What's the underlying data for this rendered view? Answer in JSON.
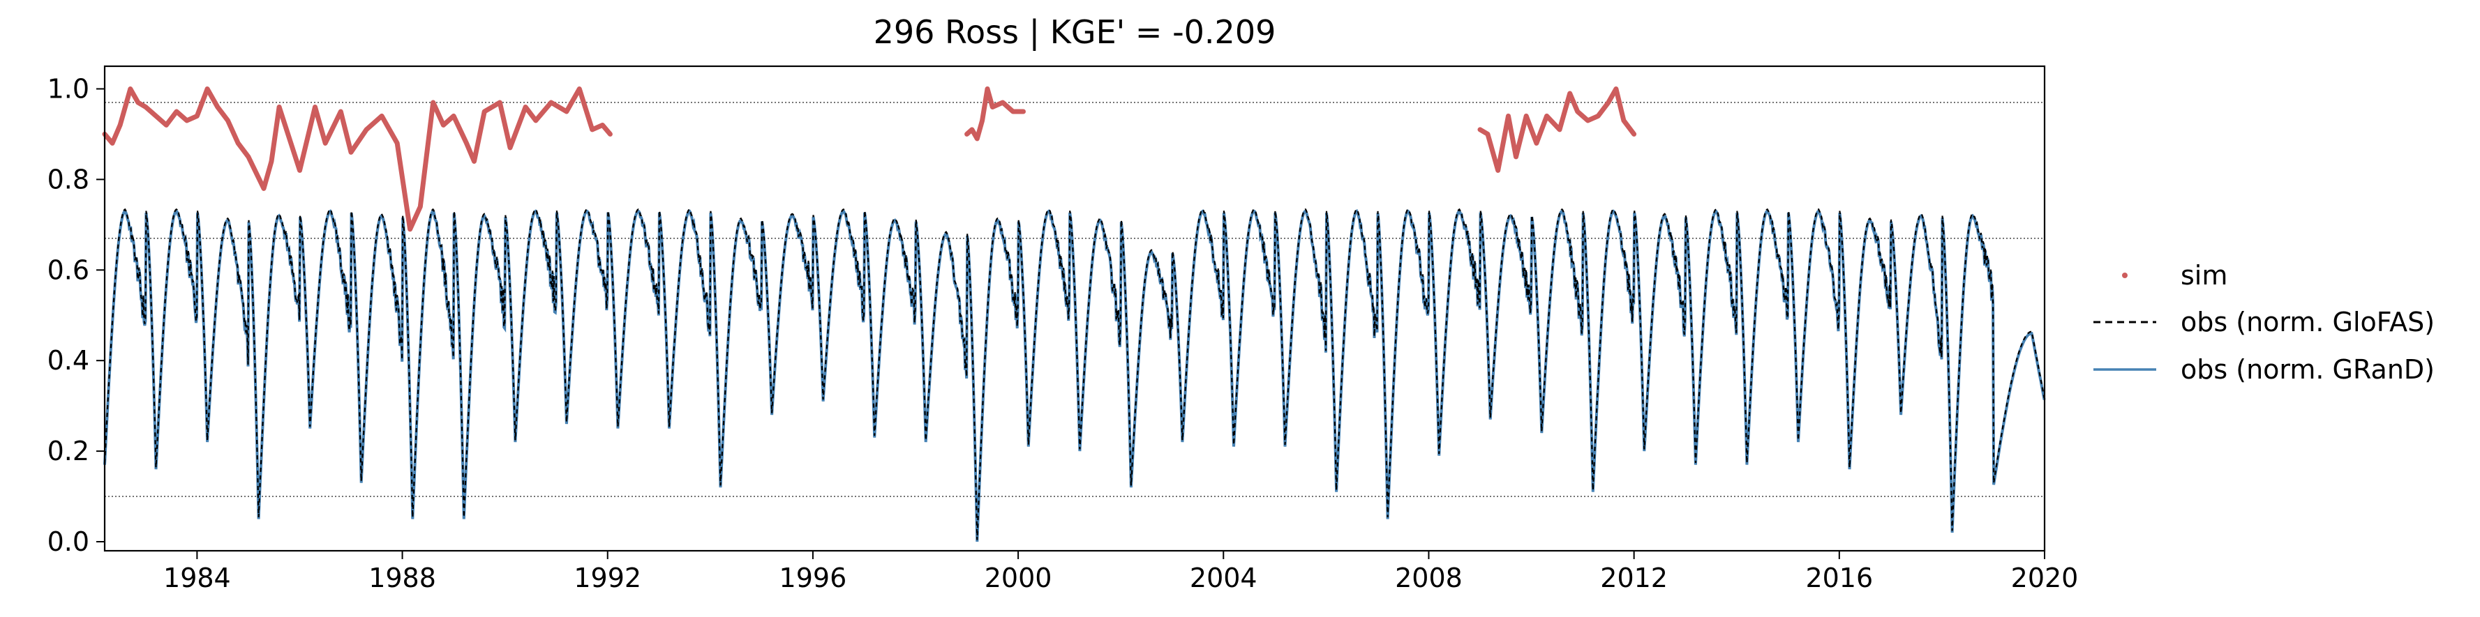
{
  "chart_data": {
    "type": "line",
    "title": "296  Ross | KGE' = -0.209",
    "xlabel": "",
    "ylabel": "",
    "xlim": [
      1982.2,
      2020.0
    ],
    "ylim": [
      -0.02,
      1.05
    ],
    "x_ticks": [
      1984,
      1988,
      1992,
      1996,
      2000,
      2004,
      2008,
      2012,
      2016,
      2020
    ],
    "x_tick_labels": [
      "1984",
      "1988",
      "1992",
      "1996",
      "2000",
      "2004",
      "2008",
      "2012",
      "2016",
      "2020"
    ],
    "y_ticks": [
      0.0,
      0.2,
      0.4,
      0.6,
      0.8,
      1.0
    ],
    "y_tick_labels": [
      "0.0",
      "0.2",
      "0.4",
      "0.6",
      "0.8",
      "1.0"
    ],
    "reference_lines_y": [
      0.97,
      0.67,
      0.1
    ],
    "legend": {
      "position": "right-outside",
      "entries": [
        "sim",
        "obs (norm. GloFAS)",
        "obs (norm. GRanD)"
      ]
    },
    "colors": {
      "sim": "#cd5c5c",
      "obs_glofas": "#000000",
      "obs_grand": "#4682b4",
      "reference": "#555555"
    },
    "obs_annual_cycle": {
      "years": [
        1982,
        1983,
        1984,
        1985,
        1986,
        1987,
        1988,
        1989,
        1990,
        1991,
        1992,
        1993,
        1994,
        1995,
        1996,
        1997,
        1998,
        1999,
        2000,
        2001,
        2002,
        2003,
        2004,
        2005,
        2006,
        2007,
        2008,
        2009,
        2010,
        2011,
        2012,
        2013,
        2014,
        2015,
        2016,
        2017,
        2018,
        2019
      ],
      "annual_min": [
        0.17,
        0.16,
        0.22,
        0.05,
        0.25,
        0.13,
        0.05,
        0.05,
        0.22,
        0.26,
        0.25,
        0.25,
        0.12,
        0.28,
        0.31,
        0.23,
        0.22,
        0.0,
        0.21,
        0.2,
        0.12,
        0.22,
        0.21,
        0.21,
        0.11,
        0.05,
        0.19,
        0.27,
        0.24,
        0.11,
        0.2,
        0.17,
        0.17,
        0.22,
        0.16,
        0.28,
        0.02,
        0.31
      ],
      "annual_max": [
        0.73,
        0.73,
        0.71,
        0.72,
        0.73,
        0.72,
        0.73,
        0.72,
        0.73,
        0.73,
        0.73,
        0.73,
        0.71,
        0.72,
        0.73,
        0.71,
        0.68,
        0.71,
        0.73,
        0.71,
        0.64,
        0.73,
        0.73,
        0.73,
        0.73,
        0.73,
        0.73,
        0.72,
        0.73,
        0.73,
        0.72,
        0.73,
        0.73,
        0.73,
        0.71,
        0.72,
        0.72,
        0.46
      ],
      "min_time": 0.2,
      "max_time": 0.6,
      "end_value": 0.31
    },
    "sim_series": [
      {
        "x": [
          1982.2,
          1982.35,
          1982.5,
          1982.7,
          1982.85,
          1983.0,
          1983.2,
          1983.4,
          1983.6,
          1983.8,
          1984.0,
          1984.2,
          1984.4,
          1984.6,
          1984.8,
          1985.0,
          1985.3,
          1985.45,
          1985.6,
          1985.8,
          1986.0,
          1986.3,
          1986.5,
          1986.8,
          1987.0,
          1987.3,
          1987.6,
          1987.9,
          1988.15,
          1988.35,
          1988.6,
          1988.8,
          1989.0,
          1989.25,
          1989.4,
          1989.6,
          1989.9,
          1990.1,
          1990.4,
          1990.6,
          1990.9,
          1991.2,
          1991.45,
          1991.7,
          1991.9,
          1992.05
        ],
        "y": [
          0.9,
          0.88,
          0.92,
          1.0,
          0.97,
          0.96,
          0.94,
          0.92,
          0.95,
          0.93,
          0.94,
          1.0,
          0.96,
          0.93,
          0.88,
          0.85,
          0.78,
          0.84,
          0.96,
          0.89,
          0.82,
          0.96,
          0.88,
          0.95,
          0.86,
          0.91,
          0.94,
          0.88,
          0.69,
          0.74,
          0.97,
          0.92,
          0.94,
          0.88,
          0.84,
          0.95,
          0.97,
          0.87,
          0.96,
          0.93,
          0.97,
          0.95,
          1.0,
          0.91,
          0.92,
          0.9
        ]
      },
      {
        "x": [
          1999.0,
          1999.1,
          1999.2,
          1999.3,
          1999.4,
          1999.5,
          1999.7,
          1999.9,
          2000.1
        ],
        "y": [
          0.9,
          0.91,
          0.89,
          0.93,
          1.0,
          0.96,
          0.97,
          0.95,
          0.95
        ]
      },
      {
        "x": [
          2009.0,
          2009.15,
          2009.35,
          2009.55,
          2009.7,
          2009.9,
          2010.1,
          2010.3,
          2010.55,
          2010.75,
          2010.9,
          2011.1,
          2011.3,
          2011.5,
          2011.65,
          2011.8,
          2012.0
        ],
        "y": [
          0.91,
          0.9,
          0.82,
          0.94,
          0.85,
          0.94,
          0.88,
          0.94,
          0.91,
          0.99,
          0.95,
          0.93,
          0.94,
          0.97,
          1.0,
          0.93,
          0.9
        ]
      }
    ]
  }
}
